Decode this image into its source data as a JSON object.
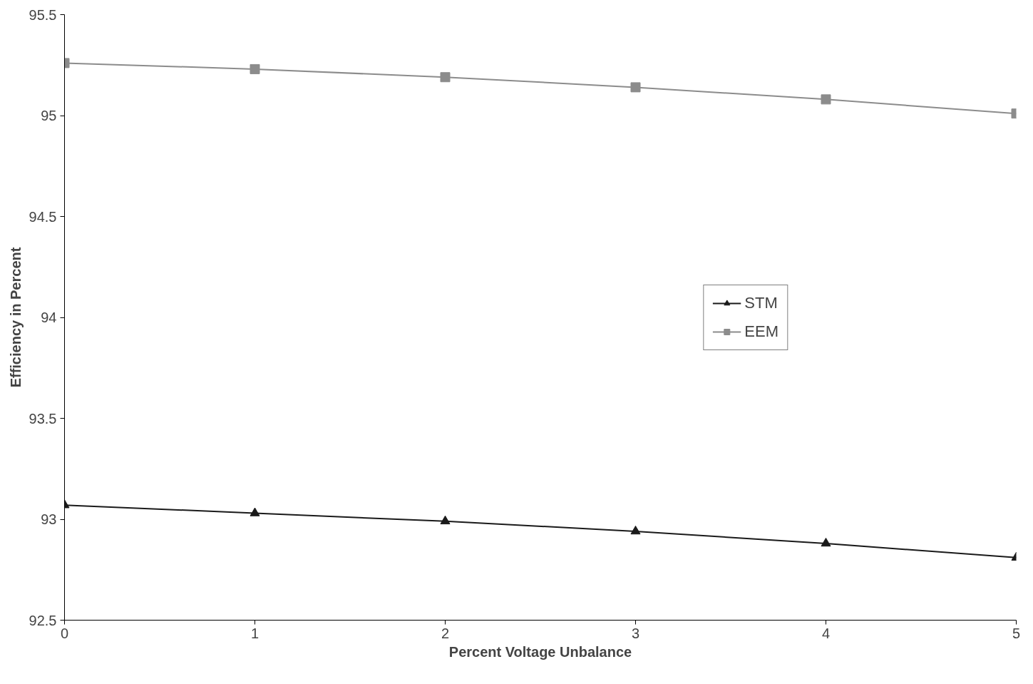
{
  "chart_data": {
    "type": "line",
    "xlabel": "Percent Voltage Unbalance",
    "ylabel": "Efficiency in Percent",
    "x": [
      0,
      1,
      2,
      3,
      4,
      5
    ],
    "series": [
      {
        "name": "STM",
        "color": "#1a1a1a",
        "marker": "triangle",
        "values": [
          93.07,
          93.03,
          92.99,
          92.94,
          92.88,
          92.81
        ]
      },
      {
        "name": "EEM",
        "color": "#8c8c8c",
        "marker": "square",
        "values": [
          95.26,
          95.23,
          95.19,
          95.14,
          95.08,
          95.01
        ]
      }
    ],
    "xlim": [
      0,
      5
    ],
    "xticks": [
      0,
      1,
      2,
      3,
      4,
      5
    ],
    "ylim": [
      92.5,
      95.5
    ],
    "yticks": [
      92.5,
      93,
      93.5,
      94,
      94.5,
      95,
      95.5
    ],
    "grid": false,
    "legend": "right"
  }
}
